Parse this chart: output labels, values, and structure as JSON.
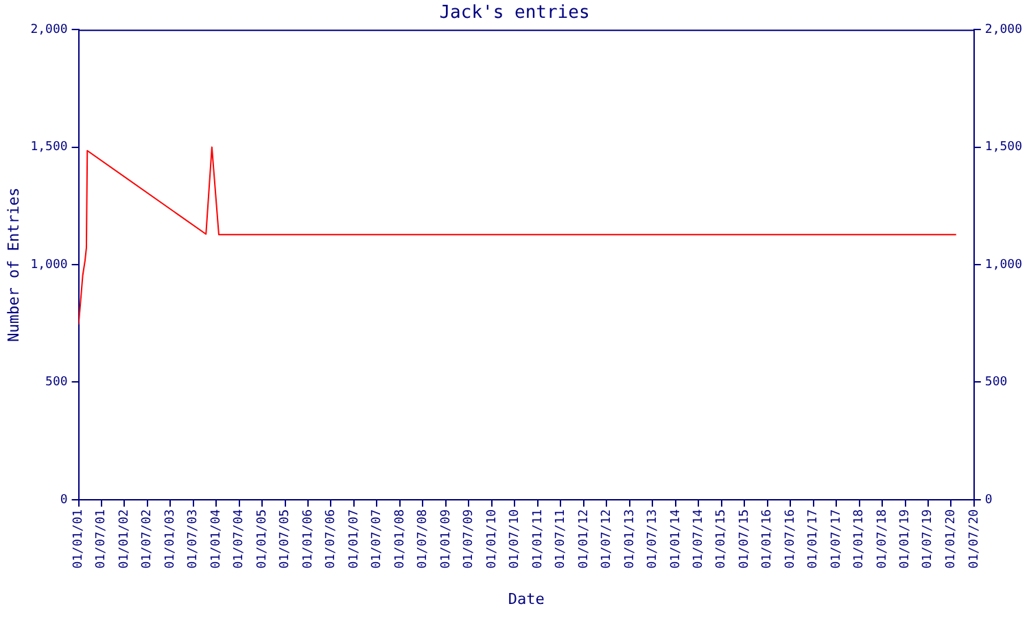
{
  "chart_data": {
    "type": "line",
    "title": "Jack's entries",
    "xlabel": "Date",
    "ylabel": "Number of Entries",
    "x": [
      "2001-01-01",
      "2001-01-15",
      "2001-02-03",
      "2001-02-21",
      "2001-03-04",
      "2001-03-11",
      "2003-10-11",
      "2003-11-27",
      "2004-01-21",
      "2020-02-10"
    ],
    "series": [
      {
        "color": "#ff0000",
        "values": [
          745,
          833,
          955,
          1017,
          1072,
          1485,
          1130,
          1500,
          1128,
          1128
        ]
      }
    ],
    "xlim": [
      "2001-01-01",
      "2020-07-01"
    ],
    "xticks": [
      {
        "value": "2001-01-01",
        "label": "01/01/01"
      },
      {
        "value": "2001-07-01",
        "label": "01/07/01"
      },
      {
        "value": "2002-01-01",
        "label": "01/01/02"
      },
      {
        "value": "2002-07-01",
        "label": "01/07/02"
      },
      {
        "value": "2003-01-01",
        "label": "01/01/03"
      },
      {
        "value": "2003-07-01",
        "label": "01/07/03"
      },
      {
        "value": "2004-01-01",
        "label": "01/01/04"
      },
      {
        "value": "2004-07-01",
        "label": "01/07/04"
      },
      {
        "value": "2005-01-01",
        "label": "01/01/05"
      },
      {
        "value": "2005-07-01",
        "label": "01/07/05"
      },
      {
        "value": "2006-01-01",
        "label": "01/01/06"
      },
      {
        "value": "2006-07-01",
        "label": "01/07/06"
      },
      {
        "value": "2007-01-01",
        "label": "01/01/07"
      },
      {
        "value": "2007-07-01",
        "label": "01/07/07"
      },
      {
        "value": "2008-01-01",
        "label": "01/01/08"
      },
      {
        "value": "2008-07-01",
        "label": "01/07/08"
      },
      {
        "value": "2009-01-01",
        "label": "01/01/09"
      },
      {
        "value": "2009-07-01",
        "label": "01/07/09"
      },
      {
        "value": "2010-01-01",
        "label": "01/01/10"
      },
      {
        "value": "2010-07-01",
        "label": "01/07/10"
      },
      {
        "value": "2011-01-01",
        "label": "01/01/11"
      },
      {
        "value": "2011-07-01",
        "label": "01/07/11"
      },
      {
        "value": "2012-01-01",
        "label": "01/01/12"
      },
      {
        "value": "2012-07-01",
        "label": "01/07/12"
      },
      {
        "value": "2013-01-01",
        "label": "01/01/13"
      },
      {
        "value": "2013-07-01",
        "label": "01/07/13"
      },
      {
        "value": "2014-01-01",
        "label": "01/01/14"
      },
      {
        "value": "2014-07-01",
        "label": "01/07/14"
      },
      {
        "value": "2015-01-01",
        "label": "01/01/15"
      },
      {
        "value": "2015-07-01",
        "label": "01/07/15"
      },
      {
        "value": "2016-01-01",
        "label": "01/01/16"
      },
      {
        "value": "2016-07-01",
        "label": "01/07/16"
      },
      {
        "value": "2017-01-01",
        "label": "01/01/17"
      },
      {
        "value": "2017-07-01",
        "label": "01/07/17"
      },
      {
        "value": "2018-01-01",
        "label": "01/01/18"
      },
      {
        "value": "2018-07-01",
        "label": "01/07/18"
      },
      {
        "value": "2019-01-01",
        "label": "01/01/19"
      },
      {
        "value": "2019-07-01",
        "label": "01/07/19"
      },
      {
        "value": "2020-01-01",
        "label": "01/01/20"
      },
      {
        "value": "2020-07-01",
        "label": "01/07/20"
      }
    ],
    "ylim": [
      0,
      2000
    ],
    "yticks": [
      0,
      500,
      {
        "value": 1000,
        "label": "1,000"
      },
      {
        "value": 1500,
        "label": "1,500"
      },
      {
        "value": 2000,
        "label": "2,000"
      }
    ],
    "y2lim": [
      0,
      2000
    ],
    "y2ticks": [
      0,
      500,
      {
        "value": 1000,
        "label": "1,000"
      },
      {
        "value": 1500,
        "label": "1,500"
      },
      {
        "value": 2000,
        "label": "2,000"
      }
    ],
    "grid": false,
    "legend": false,
    "marker": "none",
    "line_style": "solid"
  }
}
